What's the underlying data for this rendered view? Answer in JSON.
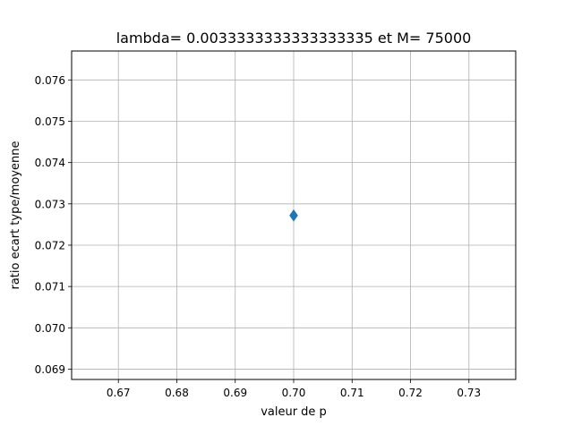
{
  "chart_data": {
    "type": "scatter",
    "title": "lambda= 0.0033333333333333335 et M= 75000",
    "xlabel": "valeur de p",
    "ylabel": "ratio ecart type/moyenne",
    "xlim": [
      0.662,
      0.738
    ],
    "ylim": [
      0.06875,
      0.0767
    ],
    "x_ticks": [
      0.67,
      0.68,
      0.69,
      0.7,
      0.71,
      0.72,
      0.73
    ],
    "x_tick_labels": [
      "0.67",
      "0.68",
      "0.69",
      "0.70",
      "0.71",
      "0.72",
      "0.73"
    ],
    "y_ticks": [
      0.069,
      0.07,
      0.071,
      0.072,
      0.073,
      0.074,
      0.075,
      0.076
    ],
    "y_tick_labels": [
      "0.069",
      "0.070",
      "0.071",
      "0.072",
      "0.073",
      "0.074",
      "0.075",
      "0.076"
    ],
    "grid": true,
    "series": [
      {
        "marker": "diamond",
        "color": "#1f77b4",
        "x": [
          0.7
        ],
        "y": [
          0.07272
        ]
      }
    ]
  }
}
